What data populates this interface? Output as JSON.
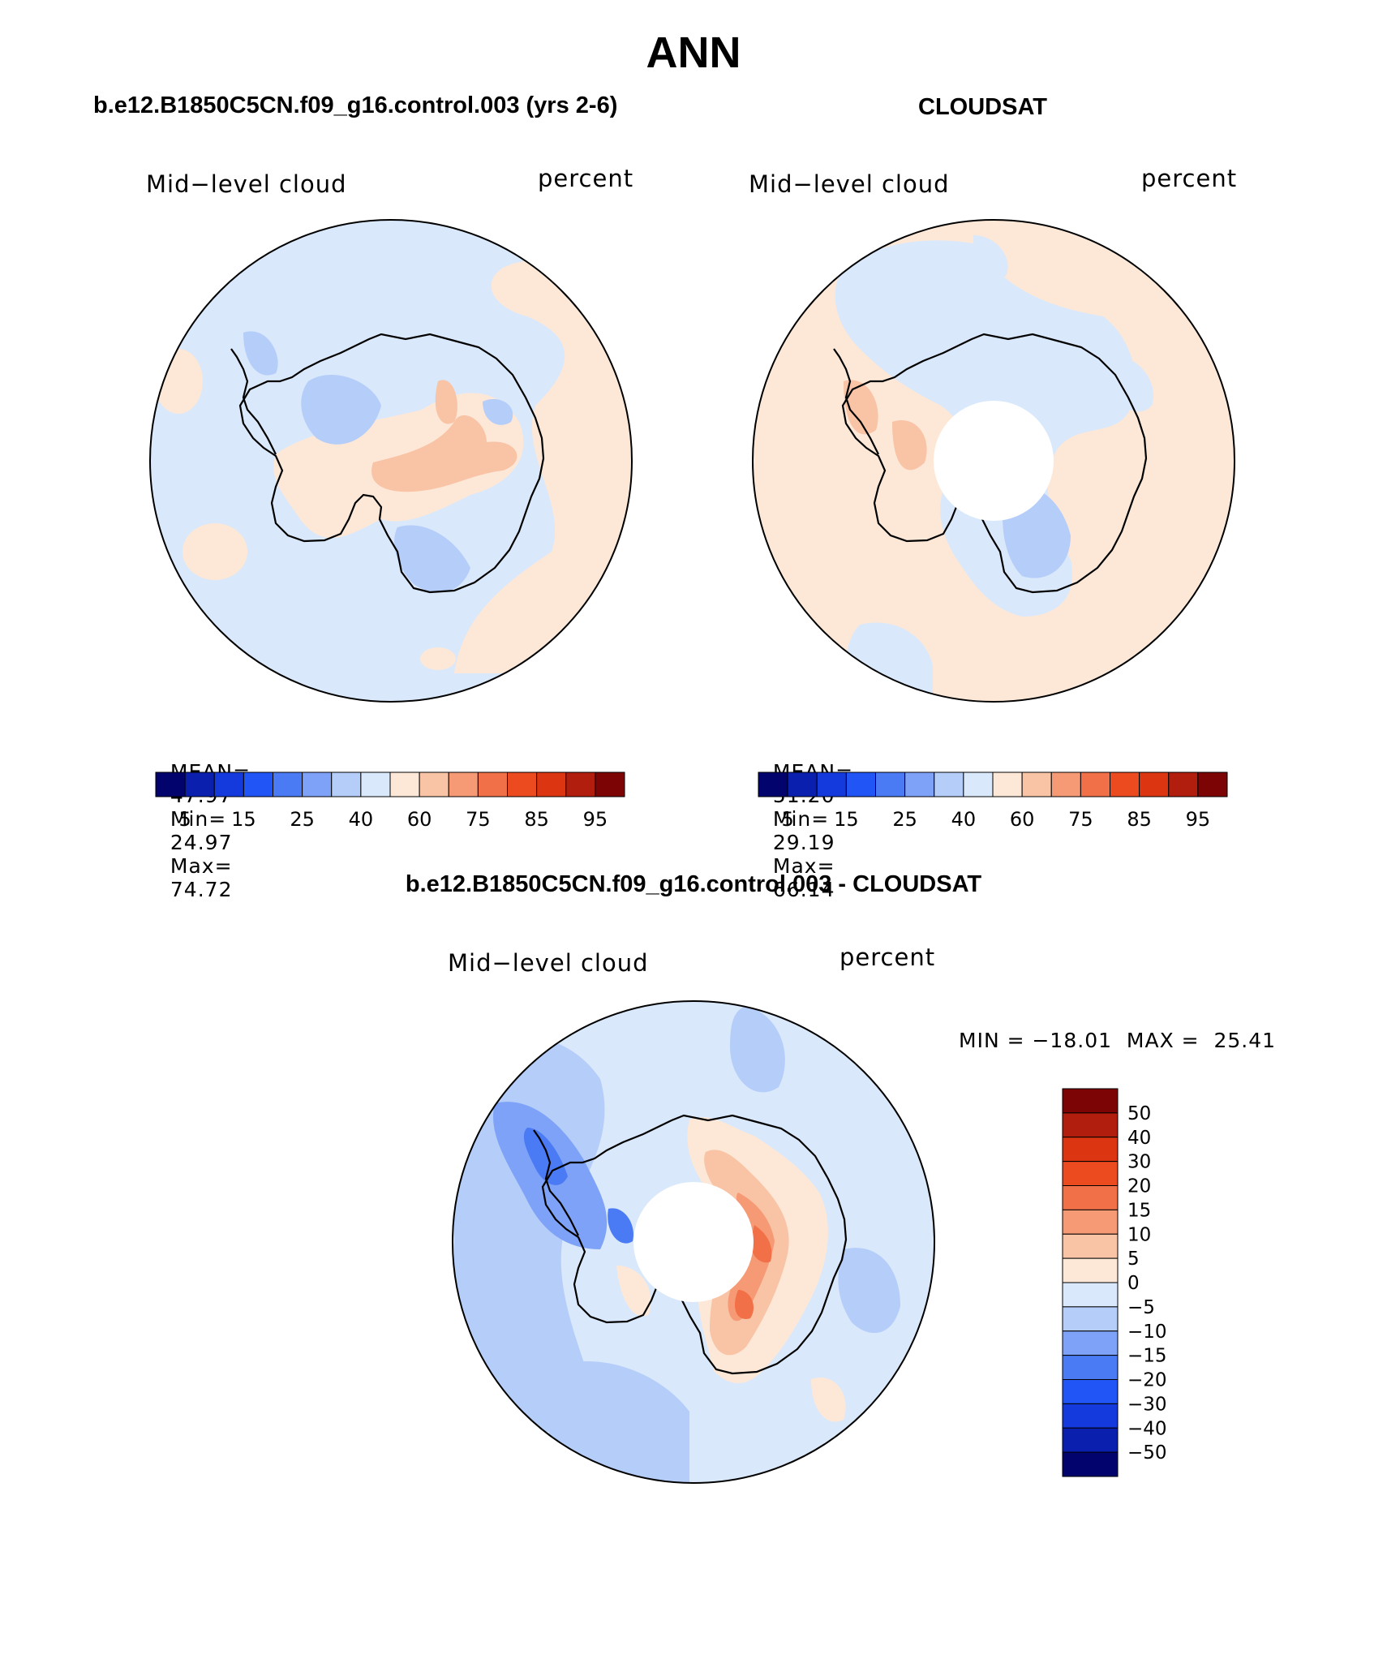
{
  "page": {
    "title": "ANN",
    "panel_left_title": "b.e12.B1850C5CN.f09_g16.control.003 (yrs 2-6)",
    "panel_right_title": "CLOUDSAT",
    "panel_diff_title": "b.e12.B1850C5CN.f09_g16.control.003 - CLOUDSAT"
  },
  "panels": {
    "left": {
      "variable": "Mid−level cloud",
      "units": "percent",
      "stats": {
        "mean_label": "MEAN=",
        "mean": "47.97",
        "min_label": "Min=",
        "min": "24.97",
        "max_label": "Max=",
        "max": "74.72"
      }
    },
    "right": {
      "variable": "Mid−level cloud",
      "units": "percent",
      "stats": {
        "mean_label": "MEAN=",
        "mean": "51.20",
        "min_label": "Min=",
        "min": "29.19",
        "max_label": "Max=",
        "max": "66.14"
      }
    },
    "diff": {
      "variable": "Mid−level cloud",
      "units": "percent",
      "minmax": "MIN = −18.01  MAX =  25.41"
    }
  },
  "colorbars": {
    "field": {
      "colors": [
        "#03036e",
        "#0a1fad",
        "#1439dd",
        "#2255f5",
        "#4a7bf4",
        "#7ea2f7",
        "#b5cdf9",
        "#d9e8fb",
        "#fde8d8",
        "#f9c3a5",
        "#f59a75",
        "#f27048",
        "#ec4a1f",
        "#db3512",
        "#b21e0d",
        "#7d0404"
      ],
      "labels": [
        "5",
        "15",
        "25",
        "40",
        "60",
        "75",
        "85",
        "95"
      ]
    },
    "diff": {
      "colors": [
        "#7d0404",
        "#b21e0d",
        "#db3512",
        "#ec4a1f",
        "#f27048",
        "#f59a75",
        "#f9c3a5",
        "#fde8d8",
        "#d9e8fb",
        "#b5cdf9",
        "#7ea2f7",
        "#4a7bf4",
        "#2255f5",
        "#1439dd",
        "#0a1fad",
        "#03036e"
      ],
      "labels": [
        "50",
        "40",
        "30",
        "20",
        "15",
        "10",
        "5",
        "0",
        "−5",
        "−10",
        "−15",
        "−20",
        "−30",
        "−40",
        "−50"
      ]
    }
  }
}
